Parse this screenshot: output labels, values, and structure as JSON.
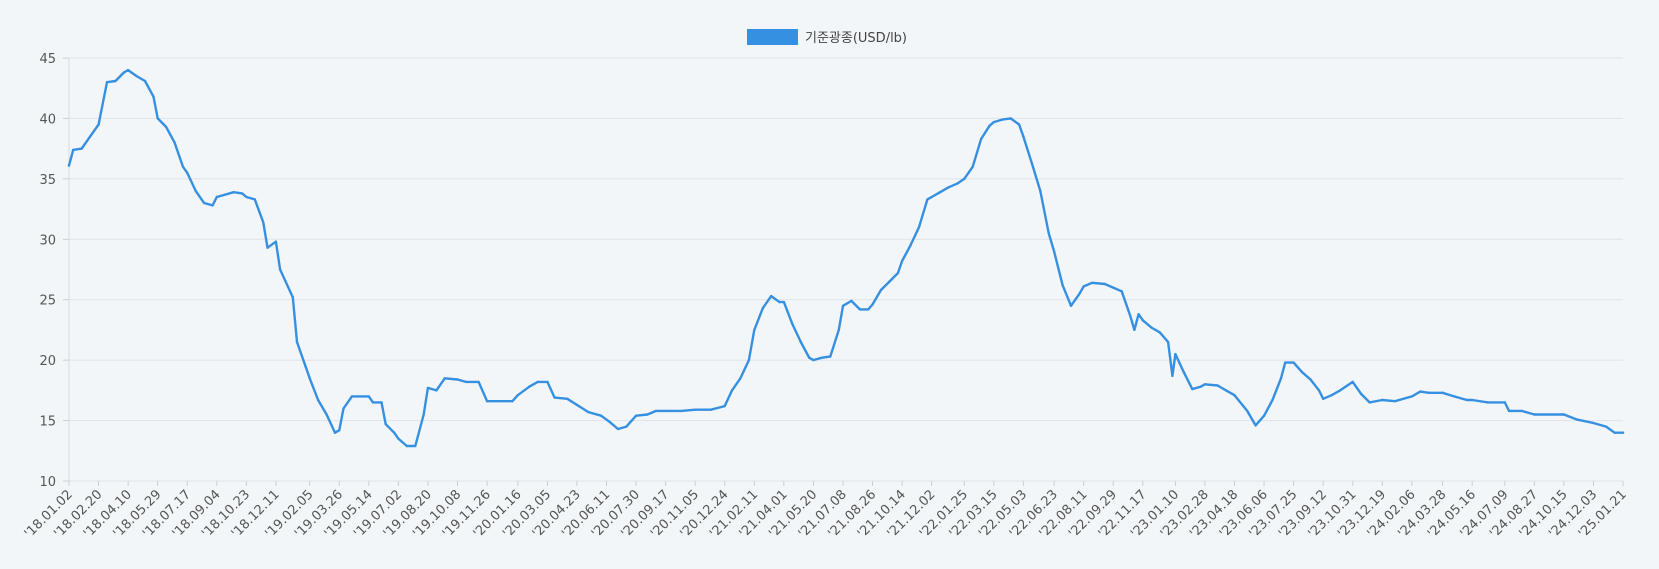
{
  "chart_data": {
    "type": "line",
    "legend": {
      "position": "top-center",
      "color": "#3690e1"
    },
    "series": [
      {
        "name": "기준광종(USD/lb)",
        "color": "#3690e1",
        "points": [
          [
            "18.01.02",
            36.1
          ],
          [
            "18.01.09",
            37.4
          ],
          [
            "18.01.23",
            37.5
          ],
          [
            "18.02.06",
            38.5
          ],
          [
            "18.02.20",
            39.5
          ],
          [
            "18.03.06",
            43.0
          ],
          [
            "18.03.20",
            43.1
          ],
          [
            "18.04.03",
            43.8
          ],
          [
            "18.04.10",
            44.0
          ],
          [
            "18.04.24",
            43.5
          ],
          [
            "18.05.08",
            43.1
          ],
          [
            "18.05.22",
            41.8
          ],
          [
            "18.05.29",
            40.0
          ],
          [
            "18.06.12",
            39.3
          ],
          [
            "18.06.26",
            38.0
          ],
          [
            "18.07.10",
            36.0
          ],
          [
            "18.07.17",
            35.5
          ],
          [
            "18.07.31",
            34.0
          ],
          [
            "18.08.14",
            33.0
          ],
          [
            "18.08.28",
            32.8
          ],
          [
            "18.09.04",
            33.5
          ],
          [
            "18.09.18",
            33.7
          ],
          [
            "18.10.02",
            33.9
          ],
          [
            "18.10.16",
            33.8
          ],
          [
            "18.10.23",
            33.5
          ],
          [
            "18.11.06",
            33.3
          ],
          [
            "18.11.20",
            31.4
          ],
          [
            "18.11.27",
            29.3
          ],
          [
            "18.12.11",
            29.8
          ],
          [
            "18.12.18",
            27.5
          ],
          [
            "19.01.08",
            25.2
          ],
          [
            "19.01.15",
            21.5
          ],
          [
            "19.01.29",
            19.5
          ],
          [
            "19.02.05",
            18.5
          ],
          [
            "19.02.19",
            16.7
          ],
          [
            "19.03.05",
            15.5
          ],
          [
            "19.03.19",
            14.0
          ],
          [
            "19.03.26",
            14.2
          ],
          [
            "19.04.02",
            16.0
          ],
          [
            "19.04.16",
            17.0
          ],
          [
            "19.05.14",
            17.0
          ],
          [
            "19.05.21",
            16.5
          ],
          [
            "19.06.04",
            16.5
          ],
          [
            "19.06.11",
            14.7
          ],
          [
            "19.06.25",
            14.0
          ],
          [
            "19.07.02",
            13.5
          ],
          [
            "19.07.16",
            12.9
          ],
          [
            "19.07.30",
            12.9
          ],
          [
            "19.08.13",
            15.5
          ],
          [
            "19.08.20",
            17.7
          ],
          [
            "19.09.03",
            17.5
          ],
          [
            "19.09.17",
            18.5
          ],
          [
            "19.10.08",
            18.4
          ],
          [
            "19.10.22",
            18.2
          ],
          [
            "19.11.12",
            18.2
          ],
          [
            "19.11.26",
            16.6
          ],
          [
            "20.01.07",
            16.6
          ],
          [
            "20.01.16",
            17.1
          ],
          [
            "20.02.04",
            17.8
          ],
          [
            "20.02.18",
            18.2
          ],
          [
            "20.03.05",
            18.2
          ],
          [
            "20.03.17",
            16.9
          ],
          [
            "20.04.07",
            16.8
          ],
          [
            "20.04.23",
            16.3
          ],
          [
            "20.05.12",
            15.7
          ],
          [
            "20.06.02",
            15.4
          ],
          [
            "20.06.16",
            14.9
          ],
          [
            "20.06.30",
            14.3
          ],
          [
            "20.07.14",
            14.5
          ],
          [
            "20.07.30",
            15.4
          ],
          [
            "20.08.18",
            15.5
          ],
          [
            "20.09.01",
            15.8
          ],
          [
            "20.09.17",
            15.8
          ],
          [
            "20.10.13",
            15.8
          ],
          [
            "20.11.05",
            15.9
          ],
          [
            "20.12.01",
            15.9
          ],
          [
            "20.12.24",
            16.2
          ],
          [
            "21.01.05",
            17.5
          ],
          [
            "21.01.19",
            18.5
          ],
          [
            "21.02.02",
            20.0
          ],
          [
            "21.02.11",
            22.5
          ],
          [
            "21.02.25",
            24.3
          ],
          [
            "21.03.11",
            25.3
          ],
          [
            "21.03.25",
            24.8
          ],
          [
            "21.04.01",
            24.8
          ],
          [
            "21.04.15",
            23.0
          ],
          [
            "21.04.29",
            21.5
          ],
          [
            "21.05.13",
            20.2
          ],
          [
            "21.05.20",
            20.0
          ],
          [
            "21.06.03",
            20.2
          ],
          [
            "21.06.17",
            20.3
          ],
          [
            "21.07.01",
            22.5
          ],
          [
            "21.07.08",
            24.5
          ],
          [
            "21.07.22",
            24.9
          ],
          [
            "21.08.05",
            24.2
          ],
          [
            "21.08.19",
            24.2
          ],
          [
            "21.08.26",
            24.6
          ],
          [
            "21.09.09",
            25.8
          ],
          [
            "21.09.23",
            26.5
          ],
          [
            "21.10.07",
            27.2
          ],
          [
            "21.10.14",
            28.2
          ],
          [
            "21.10.28",
            29.5
          ],
          [
            "21.11.11",
            31.0
          ],
          [
            "21.11.25",
            33.3
          ],
          [
            "21.12.02",
            33.5
          ],
          [
            "21.12.16",
            33.9
          ],
          [
            "21.12.30",
            34.3
          ],
          [
            "22.01.13",
            34.6
          ],
          [
            "22.01.25",
            35.0
          ],
          [
            "22.02.08",
            36.0
          ],
          [
            "22.02.22",
            38.3
          ],
          [
            "22.03.08",
            39.4
          ],
          [
            "22.03.15",
            39.7
          ],
          [
            "22.03.29",
            39.9
          ],
          [
            "22.04.12",
            40.0
          ],
          [
            "22.04.26",
            39.5
          ],
          [
            "22.05.03",
            38.5
          ],
          [
            "22.05.17",
            36.3
          ],
          [
            "22.05.31",
            34.0
          ],
          [
            "22.06.14",
            30.5
          ],
          [
            "22.06.23",
            29.0
          ],
          [
            "22.07.07",
            26.2
          ],
          [
            "22.07.21",
            24.5
          ],
          [
            "22.08.04",
            25.5
          ],
          [
            "22.08.11",
            26.1
          ],
          [
            "22.08.25",
            26.4
          ],
          [
            "22.09.15",
            26.3
          ],
          [
            "22.09.29",
            26.0
          ],
          [
            "22.10.13",
            25.7
          ],
          [
            "22.10.27",
            23.7
          ],
          [
            "22.11.03",
            22.5
          ],
          [
            "22.11.10",
            23.8
          ],
          [
            "22.11.17",
            23.3
          ],
          [
            "22.12.01",
            22.7
          ],
          [
            "22.12.15",
            22.3
          ],
          [
            "22.12.29",
            21.5
          ],
          [
            "23.01.05",
            18.7
          ],
          [
            "23.01.10",
            20.5
          ],
          [
            "23.01.24",
            19.0
          ],
          [
            "23.02.07",
            17.6
          ],
          [
            "23.02.21",
            17.8
          ],
          [
            "23.02.28",
            18.0
          ],
          [
            "23.03.21",
            17.9
          ],
          [
            "23.04.04",
            17.5
          ],
          [
            "23.04.18",
            17.1
          ],
          [
            "23.05.09",
            15.8
          ],
          [
            "23.05.23",
            14.6
          ],
          [
            "23.06.06",
            15.4
          ],
          [
            "23.06.20",
            16.7
          ],
          [
            "23.07.04",
            18.5
          ],
          [
            "23.07.11",
            19.8
          ],
          [
            "23.07.25",
            19.8
          ],
          [
            "23.08.08",
            19.0
          ],
          [
            "23.08.22",
            18.4
          ],
          [
            "23.09.05",
            17.5
          ],
          [
            "23.09.12",
            16.8
          ],
          [
            "23.09.26",
            17.1
          ],
          [
            "23.10.10",
            17.5
          ],
          [
            "23.10.31",
            18.2
          ],
          [
            "23.11.14",
            17.2
          ],
          [
            "23.11.28",
            16.5
          ],
          [
            "23.12.19",
            16.7
          ],
          [
            "24.01.09",
            16.6
          ],
          [
            "24.02.06",
            17.0
          ],
          [
            "24.02.20",
            17.4
          ],
          [
            "24.03.05",
            17.3
          ],
          [
            "24.03.28",
            17.3
          ],
          [
            "24.04.16",
            17.0
          ],
          [
            "24.05.07",
            16.7
          ],
          [
            "24.05.16",
            16.7
          ],
          [
            "24.06.11",
            16.5
          ],
          [
            "24.07.09",
            16.5
          ],
          [
            "24.07.16",
            15.8
          ],
          [
            "24.08.06",
            15.8
          ],
          [
            "24.08.27",
            15.5
          ],
          [
            "24.10.15",
            15.5
          ],
          [
            "24.11.05",
            15.1
          ],
          [
            "24.12.03",
            14.8
          ],
          [
            "24.12.24",
            14.5
          ],
          [
            "25.01.07",
            14.0
          ],
          [
            "25.01.21",
            14.0
          ]
        ]
      }
    ],
    "x_tick_labels": [
      "18.01.02",
      "18.02.20",
      "18.04.10",
      "18.05.29",
      "18.07.17",
      "18.09.04",
      "18.10.23",
      "18.12.11",
      "19.02.05",
      "19.03.26",
      "19.05.14",
      "19.07.02",
      "19.08.20",
      "19.10.08",
      "19.11.26",
      "20.01.16",
      "20.03.05",
      "20.04.23",
      "20.06.11",
      "20.07.30",
      "20.09.17",
      "20.11.05",
      "20.12.24",
      "21.02.11",
      "21.04.01",
      "21.05.20",
      "21.07.08",
      "21.08.26",
      "21.10.14",
      "21.12.02",
      "22.01.25",
      "22.03.15",
      "22.05.03",
      "22.06.23",
      "22.08.11",
      "22.09.29",
      "22.11.17",
      "23.01.10",
      "23.02.28",
      "23.04.18",
      "23.06.06",
      "23.07.25",
      "23.09.12",
      "23.10.31",
      "23.12.19",
      "24.02.06",
      "24.03.28",
      "24.05.16",
      "24.07.09",
      "24.08.27",
      "24.10.15",
      "24.12.03",
      "25.01.21"
    ],
    "x_tick_prefix": "'",
    "y_ticks": [
      10,
      15,
      20,
      25,
      30,
      35,
      40,
      45
    ],
    "ylim": [
      10,
      45
    ],
    "grid": true
  }
}
